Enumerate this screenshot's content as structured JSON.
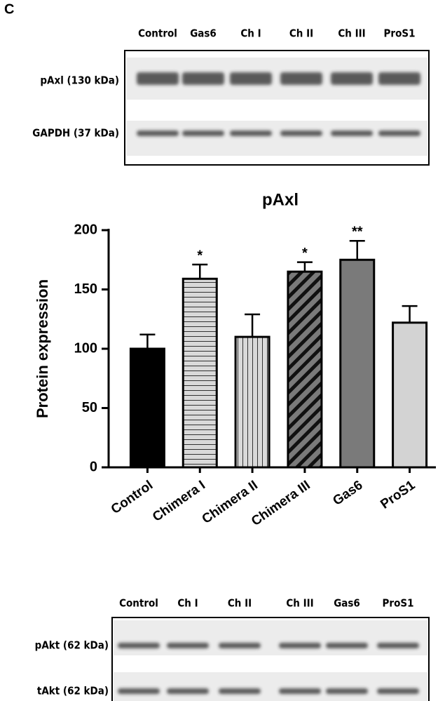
{
  "panel_label": "C",
  "blots": [
    {
      "lanes": [
        "Control",
        "Gas6",
        "Ch I",
        "Ch II",
        "Ch III",
        "ProS1"
      ],
      "rows": [
        "pAxl (130 kDa)",
        "GAPDH (37 kDa)"
      ]
    },
    {
      "lanes": [
        "Control",
        "Ch I",
        "Ch II",
        "Ch III",
        "Gas6",
        "ProS1"
      ],
      "rows": [
        "pAkt (62 kDa)",
        "tAkt (62 kDa)"
      ]
    }
  ],
  "chart_data": {
    "type": "bar",
    "title": "pAxl",
    "y_label": "Protein expression",
    "categories": [
      "Control",
      "Chimera I",
      "Chimera II",
      "Chimera III",
      "Gas6",
      "ProS1"
    ],
    "values": [
      100,
      159,
      110,
      165,
      175,
      122
    ],
    "errors": [
      12,
      12,
      19,
      8,
      16,
      14
    ],
    "significance": [
      null,
      "*",
      null,
      "*",
      "**",
      null
    ],
    "colors": [
      "#000000",
      "#d9d9d9",
      "#d9d9d9",
      "#7a7a7a",
      "#7a7a7a",
      "#d3d3d3"
    ],
    "patterns": [
      "solid",
      "horizontal",
      "vertical",
      "diagonal",
      "solid",
      "solid"
    ],
    "ylim": [
      0,
      200
    ],
    "yticks": [
      0,
      50,
      100,
      150,
      200
    ]
  }
}
